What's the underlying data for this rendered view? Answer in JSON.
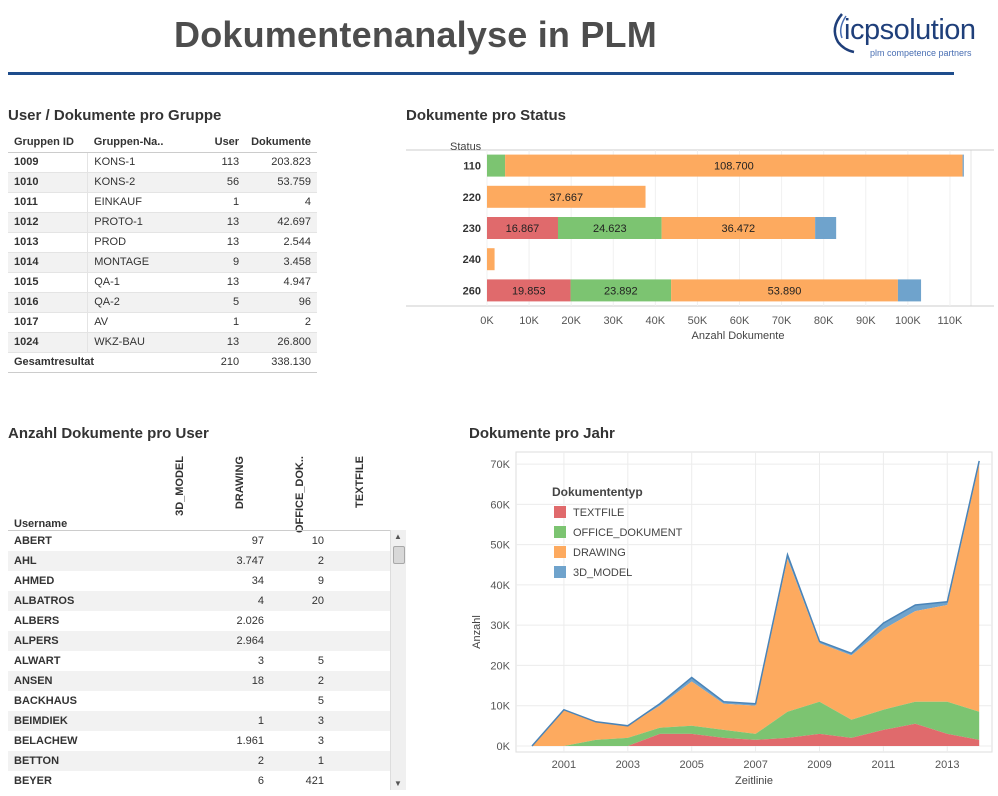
{
  "header": {
    "title": "Dokumentenanalyse in PLM",
    "logo_main": "icpsolution",
    "logo_sub": "plm competence partners"
  },
  "colors": {
    "3D_MODEL": "#6fa3cc",
    "DRAWING": "#fdaa5f",
    "OFFICE_DOKUMENT": "#7cc471",
    "TEXTFILE": "#e06a6c",
    "accent": "#1e4d8c"
  },
  "groups": {
    "title": "User / Dokumente pro Gruppe",
    "headers": [
      "Gruppen ID",
      "Gruppen-Na..",
      "User",
      "Dokumente"
    ],
    "rows": [
      [
        "1009",
        "KONS-1",
        "113",
        "203.823"
      ],
      [
        "1010",
        "KONS-2",
        "56",
        "53.759"
      ],
      [
        "1011",
        "EINKAUF",
        "1",
        "4"
      ],
      [
        "1012",
        "PROTO-1",
        "13",
        "42.697"
      ],
      [
        "1013",
        "PROD",
        "13",
        "2.544"
      ],
      [
        "1014",
        "MONTAGE",
        "9",
        "3.458"
      ],
      [
        "1015",
        "QA-1",
        "13",
        "4.947"
      ],
      [
        "1016",
        "QA-2",
        "5",
        "96"
      ],
      [
        "1017",
        "AV",
        "1",
        "2"
      ],
      [
        "1024",
        "WKZ-BAU",
        "13",
        "26.800"
      ]
    ],
    "total_label": "Gesamtresultat",
    "total_user": "210",
    "total_docs": "338.130"
  },
  "users": {
    "title": "Anzahl Dokumente pro User",
    "col_headers": [
      "3D_MODEL",
      "DRAWING",
      "OFFICE_DOK..",
      "TEXTFILE"
    ],
    "username_header": "Username",
    "rows": [
      {
        "name": "ABERT",
        "drawing": "97",
        "office": "10"
      },
      {
        "name": "AHL",
        "drawing": "3.747",
        "office": "2"
      },
      {
        "name": "AHMED",
        "drawing": "34",
        "office": "9"
      },
      {
        "name": "ALBATROS",
        "drawing": "4",
        "office": "20"
      },
      {
        "name": "ALBERS",
        "drawing": "2.026",
        "office": ""
      },
      {
        "name": "ALPERS",
        "drawing": "2.964",
        "office": ""
      },
      {
        "name": "ALWART",
        "drawing": "3",
        "office": "5"
      },
      {
        "name": "ANSEN",
        "drawing": "18",
        "office": "2"
      },
      {
        "name": "BACKHAUS",
        "drawing": "",
        "office": "5"
      },
      {
        "name": "BEIMDIEK",
        "drawing": "1",
        "office": "3"
      },
      {
        "name": "BELACHEW",
        "drawing": "1.961",
        "office": "3"
      },
      {
        "name": "BETTON",
        "drawing": "2",
        "office": "1"
      },
      {
        "name": "BEYER",
        "drawing": "6",
        "office": "421"
      }
    ]
  },
  "status_title": "Dokumente pro Status",
  "year_title": "Dokumente pro Jahr",
  "chart_data": [
    {
      "type": "bar",
      "orientation": "horizontal",
      "stacked": true,
      "title": "Dokumente pro Status",
      "ylabel": "Status",
      "xlabel": "Anzahl Dokumente",
      "categories": [
        "110",
        "220",
        "230",
        "240",
        "260"
      ],
      "xlim": [
        0,
        115000
      ],
      "xticks": [
        "0K",
        "10K",
        "20K",
        "30K",
        "40K",
        "50K",
        "60K",
        "70K",
        "80K",
        "90K",
        "100K",
        "110K"
      ],
      "series": [
        {
          "name": "TEXTFILE",
          "values": [
            0,
            0,
            16867,
            0,
            19853
          ],
          "labels": [
            "",
            "",
            "16.867",
            "",
            "19.853"
          ]
        },
        {
          "name": "OFFICE_DOKUMENT",
          "values": [
            4300,
            0,
            24623,
            0,
            23892
          ],
          "labels": [
            "",
            "",
            "24.623",
            "",
            "23.892"
          ]
        },
        {
          "name": "DRAWING",
          "values": [
            108700,
            37667,
            36472,
            1800,
            53890
          ],
          "labels": [
            "108.700",
            "37.667",
            "36.472",
            "",
            "53.890"
          ]
        },
        {
          "name": "3D_MODEL",
          "values": [
            300,
            0,
            5000,
            0,
            5500
          ],
          "labels": [
            "",
            "",
            "",
            "",
            ""
          ]
        }
      ]
    },
    {
      "type": "area",
      "stacked": true,
      "title": "Dokumente pro Jahr",
      "xlabel": "Zeitlinie",
      "ylabel": "Anzahl",
      "x": [
        2000,
        2001,
        2002,
        2003,
        2004,
        2005,
        2006,
        2007,
        2008,
        2009,
        2010,
        2011,
        2012,
        2013,
        2014
      ],
      "xticks": [
        "2001",
        "2003",
        "2005",
        "2007",
        "2009",
        "2011",
        "2013"
      ],
      "ylim": [
        0,
        70000
      ],
      "yticks": [
        "0K",
        "10K",
        "20K",
        "30K",
        "40K",
        "50K",
        "60K",
        "70K"
      ],
      "legend_title": "Dokumententyp",
      "legend_position": "top-left",
      "series": [
        {
          "name": "TEXTFILE",
          "values": [
            0,
            0,
            0,
            0,
            3000,
            3000,
            2000,
            1500,
            2000,
            3000,
            2000,
            4000,
            5500,
            3000,
            1500
          ]
        },
        {
          "name": "OFFICE_DOKUMENT",
          "values": [
            0,
            0,
            1500,
            2000,
            1500,
            2000,
            2000,
            1500,
            6500,
            8000,
            4500,
            5000,
            5500,
            8000,
            7000
          ]
        },
        {
          "name": "DRAWING",
          "values": [
            0,
            9000,
            4500,
            3000,
            5500,
            11000,
            6500,
            7000,
            38000,
            14500,
            16000,
            20000,
            22500,
            24000,
            61500
          ]
        },
        {
          "name": "3D_MODEL",
          "values": [
            0,
            0,
            0,
            0,
            500,
            1000,
            500,
            500,
            1000,
            500,
            500,
            1500,
            1500,
            800,
            800
          ]
        }
      ]
    }
  ]
}
